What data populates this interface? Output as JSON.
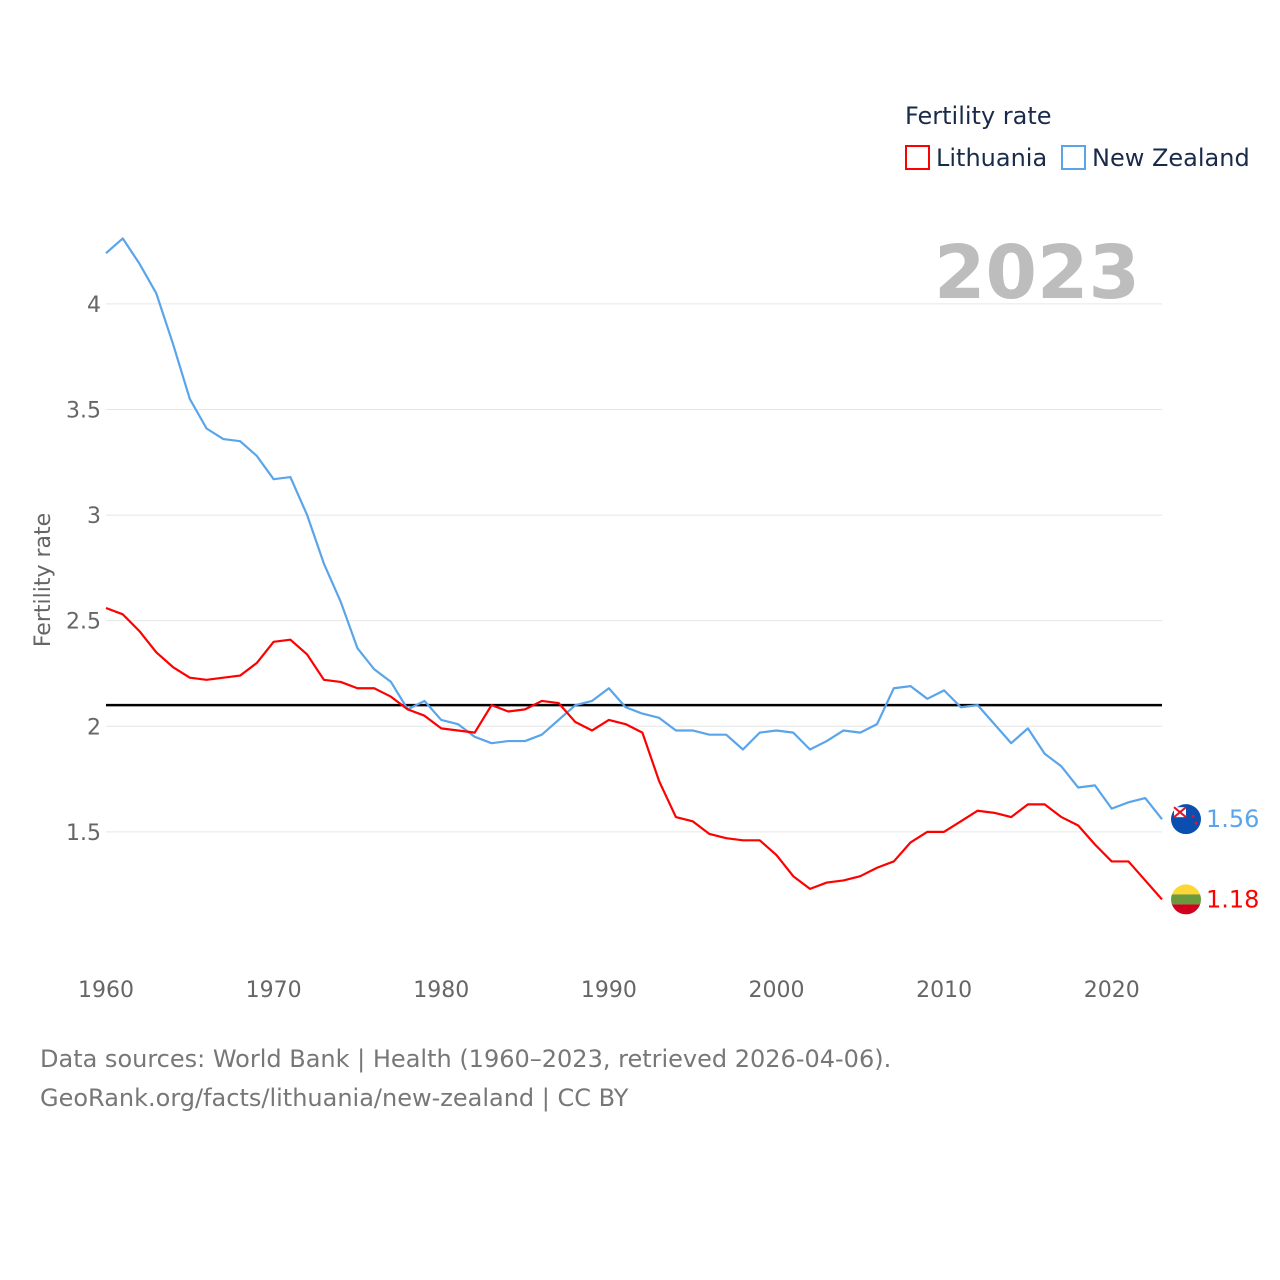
{
  "chart_data": {
    "type": "line",
    "title": "Fertility rate",
    "ylabel": "Fertility rate",
    "xlabel": "",
    "current_year": "2023",
    "xlim": [
      1960,
      2023
    ],
    "ylim": [
      0.95,
      4.35
    ],
    "x_ticks": [
      "1960",
      "1970",
      "1980",
      "1990",
      "2000",
      "2010",
      "2020"
    ],
    "y_ticks": [
      "1.5",
      "2",
      "2.5",
      "3",
      "3.5",
      "4"
    ],
    "reference_line": 2.1,
    "legend_placement": "top-right",
    "x": [
      1960,
      1961,
      1962,
      1963,
      1964,
      1965,
      1966,
      1967,
      1968,
      1969,
      1970,
      1971,
      1972,
      1973,
      1974,
      1975,
      1976,
      1977,
      1978,
      1979,
      1980,
      1981,
      1982,
      1983,
      1984,
      1985,
      1986,
      1987,
      1988,
      1989,
      1990,
      1991,
      1992,
      1993,
      1994,
      1995,
      1996,
      1997,
      1998,
      1999,
      2000,
      2001,
      2002,
      2003,
      2004,
      2005,
      2006,
      2007,
      2008,
      2009,
      2010,
      2011,
      2012,
      2013,
      2014,
      2015,
      2016,
      2017,
      2018,
      2019,
      2020,
      2021,
      2022,
      2023
    ],
    "series": [
      {
        "name": "Lithuania",
        "color": "#ff0000",
        "end_label": "1.18",
        "values": [
          2.56,
          2.53,
          2.45,
          2.35,
          2.28,
          2.23,
          2.22,
          2.23,
          2.24,
          2.3,
          2.4,
          2.41,
          2.34,
          2.22,
          2.21,
          2.18,
          2.18,
          2.14,
          2.08,
          2.05,
          1.99,
          1.98,
          1.97,
          2.1,
          2.07,
          2.08,
          2.12,
          2.11,
          2.02,
          1.98,
          2.03,
          2.01,
          1.97,
          1.74,
          1.57,
          1.55,
          1.49,
          1.47,
          1.46,
          1.46,
          1.39,
          1.29,
          1.23,
          1.26,
          1.27,
          1.29,
          1.33,
          1.36,
          1.45,
          1.5,
          1.5,
          1.55,
          1.6,
          1.59,
          1.57,
          1.63,
          1.63,
          1.57,
          1.53,
          1.44,
          1.36,
          1.36,
          1.27,
          1.18
        ]
      },
      {
        "name": "New Zealand",
        "color": "#5aa5ea",
        "end_label": "1.56",
        "values": [
          4.24,
          4.31,
          4.19,
          4.05,
          3.81,
          3.55,
          3.41,
          3.36,
          3.35,
          3.28,
          3.17,
          3.18,
          3.0,
          2.77,
          2.59,
          2.37,
          2.27,
          2.21,
          2.08,
          2.12,
          2.03,
          2.01,
          1.95,
          1.92,
          1.93,
          1.93,
          1.96,
          2.03,
          2.1,
          2.12,
          2.18,
          2.09,
          2.06,
          2.04,
          1.98,
          1.98,
          1.96,
          1.96,
          1.89,
          1.97,
          1.98,
          1.97,
          1.89,
          1.93,
          1.98,
          1.97,
          2.01,
          2.18,
          2.19,
          2.13,
          2.17,
          2.09,
          2.1,
          2.01,
          1.92,
          1.99,
          1.87,
          1.81,
          1.71,
          1.72,
          1.61,
          1.64,
          1.66,
          1.56
        ]
      }
    ]
  },
  "footer": {
    "line1": "Data sources: World Bank | Health (1960–2023, retrieved 2026-04-06).",
    "line2": "GeoRank.org/facts/lithuania/new-zealand | CC BY"
  }
}
